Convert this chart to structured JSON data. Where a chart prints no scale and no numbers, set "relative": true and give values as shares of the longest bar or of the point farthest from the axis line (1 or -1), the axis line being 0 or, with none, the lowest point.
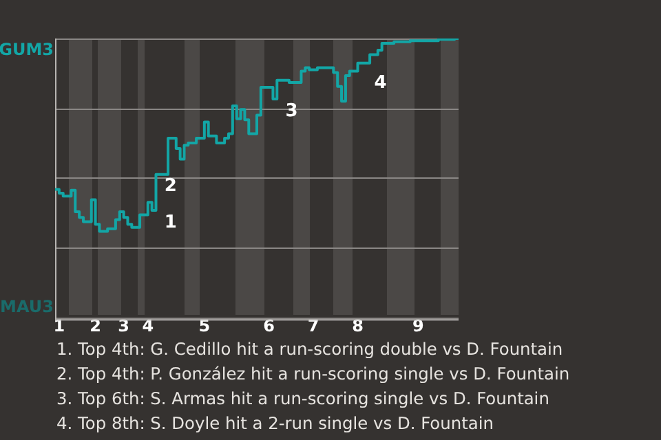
{
  "chart_data": {
    "type": "step",
    "relative": true,
    "grid": "y",
    "categories": [
      null,
      "1",
      null,
      null,
      null,
      null,
      null,
      null,
      null,
      null,
      "2",
      null,
      null,
      null,
      null,
      null,
      null,
      "3",
      null,
      null,
      null,
      null,
      null,
      "4",
      null,
      null,
      null,
      null,
      null,
      null,
      null,
      null,
      null,
      null,
      null,
      null,
      null,
      "5",
      null,
      null,
      null,
      null,
      null,
      null,
      null,
      null,
      null,
      null,
      null,
      null,
      null,
      null,
      null,
      "6",
      null,
      null,
      null,
      null,
      null,
      null,
      null,
      null,
      null,
      null,
      "7",
      null,
      null,
      null,
      null,
      null,
      null,
      null,
      null,
      null,
      null,
      "8",
      null,
      null,
      null,
      null,
      null,
      null,
      null,
      null,
      null,
      null,
      null,
      null,
      null,
      null,
      "9",
      null,
      null,
      null,
      null,
      null,
      null,
      null,
      null,
      null,
      null
    ],
    "series": [
      {
        "color": "#13a6a6",
        "values": [
          0.458,
          0.458,
          0.445,
          0.434,
          0.434,
          0.455,
          0.378,
          0.358,
          0.342,
          0.342,
          0.421,
          0.333,
          0.308,
          0.308,
          0.317,
          0.317,
          0.35,
          0.378,
          0.358,
          0.333,
          0.322,
          0.322,
          0.367,
          0.367,
          0.412,
          0.383,
          0.512,
          0.512,
          0.512,
          0.642,
          0.642,
          0.605,
          0.567,
          0.617,
          0.625,
          0.625,
          0.642,
          0.642,
          0.7,
          0.65,
          0.65,
          0.625,
          0.625,
          0.642,
          0.658,
          0.758,
          0.712,
          0.745,
          0.708,
          0.658,
          0.658,
          0.725,
          0.825,
          0.825,
          0.825,
          0.783,
          0.85,
          0.85,
          0.85,
          0.842,
          0.842,
          0.842,
          0.883,
          0.895,
          0.888,
          0.888,
          0.895,
          0.895,
          0.895,
          0.895,
          0.878,
          0.828,
          0.775,
          0.867,
          0.883,
          0.883,
          0.912,
          0.912,
          0.912,
          0.942,
          0.942,
          0.958,
          0.983,
          0.983,
          0.983,
          0.988,
          0.988,
          0.988,
          0.988,
          0.992,
          0.992,
          0.992,
          0.992,
          0.992,
          0.992,
          0.992,
          0.997,
          0.997,
          0.997,
          0.997,
          1
        ]
      }
    ],
    "annotations": [
      "GUM3",
      "MAU3",
      {
        "text": "1",
        "x": "4",
        "y": 0.383
      },
      {
        "text": "2",
        "x": "4",
        "y": 0.512
      },
      {
        "text": "3",
        "x": "6",
        "y": 0.783
      },
      {
        "text": "4",
        "x": "8",
        "y": 0.883
      },
      "1. Top 4th: G. Cedillo hit a run-scoring double vs D. Fountain",
      "2. Top 4th: P. González hit a run-scoring single vs D. Fountain",
      "3. Top 6th: S. Armas hit a run-scoring single vs D. Fountain",
      "4. Top 8th: S. Doyle hit a 2-run single vs D. Fountain"
    ]
  }
}
